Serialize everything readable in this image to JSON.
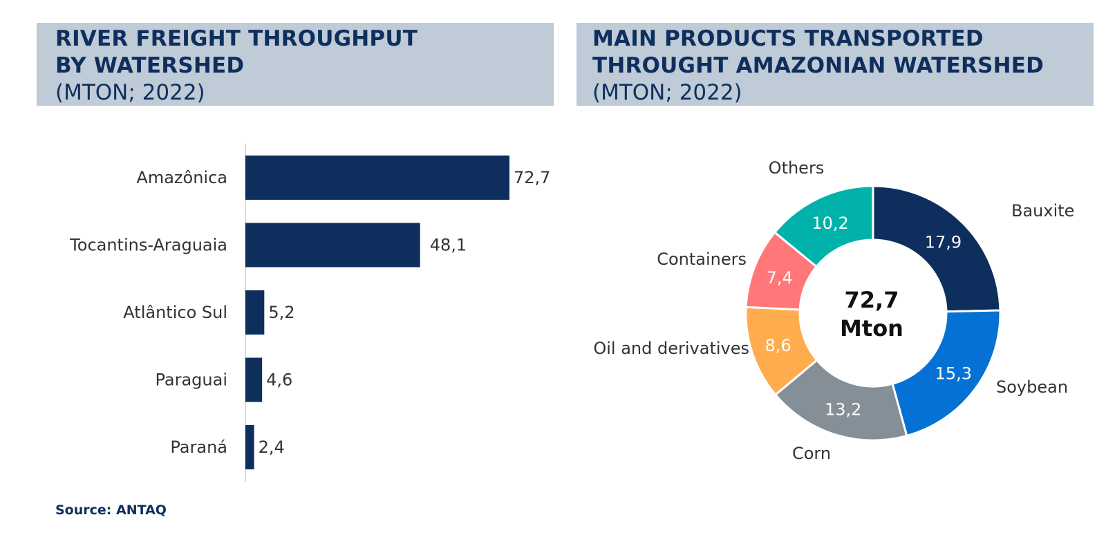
{
  "left_title": {
    "main": "RIVER FREIGHT THROUGHPUT\nBY WATERSHED",
    "sub": "(MTON; 2022)"
  },
  "right_title": {
    "main": "MAIN PRODUCTS TRANSPORTED\nTHROUGHT AMAZONIAN WATERSHED",
    "sub": "(MTON; 2022)"
  },
  "source": "Source: ANTAQ",
  "colors": {
    "title_bg": "#bfcbd6",
    "title_text": "#0e2f5e",
    "bar": "#0e2f5e"
  },
  "chart_data": [
    {
      "type": "bar",
      "orientation": "horizontal",
      "title": "RIVER FREIGHT THROUGHPUT BY WATERSHED (MTON; 2022)",
      "categories": [
        "Amazônica",
        "Tocantins-Araguaia",
        "Atlântico Sul",
        "Paraguai",
        "Paraná"
      ],
      "values": [
        72.7,
        48.1,
        5.2,
        4.6,
        2.4
      ],
      "value_labels": [
        "72,7",
        "48,1",
        "5,2",
        "4,6",
        "2,4"
      ],
      "xlim": [
        0,
        72.7
      ],
      "color": "#0e2f5e"
    },
    {
      "type": "pie",
      "variant": "donut",
      "title": "MAIN PRODUCTS TRANSPORTED THROUGHT AMAZONIAN WATERSHED (MTON; 2022)",
      "center_label": [
        "72,7",
        "Mton"
      ],
      "slices": [
        {
          "label": "Bauxite",
          "value": 17.9,
          "value_label": "17,9",
          "color": "#0e2f5e",
          "text_color": "#ffffff"
        },
        {
          "label": "Soybean",
          "value": 15.3,
          "value_label": "15,3",
          "color": "#0571d4",
          "text_color": "#ffffff"
        },
        {
          "label": "Corn",
          "value": 13.2,
          "value_label": "13,2",
          "color": "#848f98",
          "text_color": "#ffffff"
        },
        {
          "label": "Oil and derivatives",
          "value": 8.6,
          "value_label": "8,6",
          "color": "#ffac4f",
          "text_color": "#ffffff"
        },
        {
          "label": "Containers",
          "value": 7.4,
          "value_label": "7,4",
          "color": "#ff7778",
          "text_color": "#ffffff"
        },
        {
          "label": "Others",
          "value": 10.2,
          "value_label": "10,2",
          "color": "#00b2a9",
          "text_color": "#ffffff"
        }
      ]
    }
  ]
}
